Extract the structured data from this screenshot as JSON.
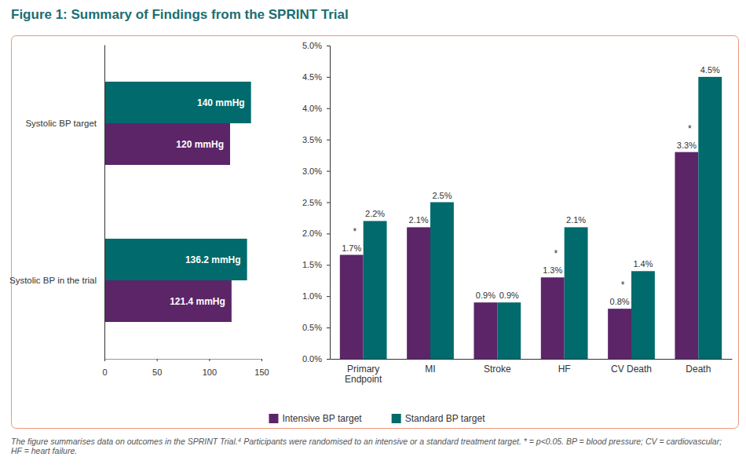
{
  "title": "Figure 1: Summary of Findings from the SPRINT Trial",
  "caption": "The figure summarises data on outcomes in the SPRINT Trial.⁴ Participants were randomised to an intensive or a standard treatment target. * = p<0.05. BP = blood pressure; CV = cardiovascular; HF = heart failure.",
  "chart_data": [
    {
      "type": "bar",
      "orientation": "horizontal",
      "categories": [
        "Systolic BP target",
        "Systolic BP in the trial"
      ],
      "series": [
        {
          "color": "#5c2568",
          "values": [
            120,
            121.4
          ],
          "value_labels": [
            "120 mmHg",
            "121.4 mmHg"
          ]
        },
        {
          "color": "#006a6c",
          "values": [
            140,
            136.2
          ],
          "value_labels": [
            "140 mmHg",
            "136.2 mmHg"
          ]
        }
      ],
      "xlim": [
        0,
        150
      ],
      "xticks": [
        0,
        50,
        100,
        150
      ],
      "data_labels": true,
      "grid": false
    },
    {
      "type": "bar",
      "categories": [
        "Primary Endpoint",
        "MI",
        "Stroke",
        "HF",
        "CV Death",
        "Death"
      ],
      "series": [
        {
          "name": "Intensive BP target",
          "color": "#5c2568",
          "values": [
            1.66,
            2.1,
            0.9,
            1.3,
            0.8,
            3.3
          ],
          "value_labels": [
            "1.7%",
            "2.1%",
            "0.9%",
            "1.3%",
            "0.8%",
            "3.3%"
          ]
        },
        {
          "name": "Standard BP target",
          "color": "#006a6c",
          "values": [
            2.2,
            2.5,
            0.9,
            2.1,
            1.4,
            4.5
          ],
          "value_labels": [
            "2.2%",
            "2.5%",
            "0.9%",
            "2.1%",
            "1.4%",
            "4.5%"
          ]
        }
      ],
      "ylim": [
        0,
        5
      ],
      "yticks": [
        {
          "value": 0,
          "label": "0.0%"
        },
        {
          "value": 0.5,
          "label": "0.5%"
        },
        {
          "value": 1,
          "label": "1.0%"
        },
        {
          "value": 1.5,
          "label": "1.5%"
        },
        {
          "value": 2,
          "label": "2.0%"
        },
        {
          "value": 2.5,
          "label": "2.5%"
        },
        {
          "value": 3,
          "label": "3.0%"
        },
        {
          "value": 3.5,
          "label": "3.5%"
        },
        {
          "value": 4,
          "label": "4.0%"
        },
        {
          "value": 4.5,
          "label": "4.5%"
        },
        {
          "value": 5,
          "label": "5.0%"
        }
      ],
      "data_labels": true,
      "grid": false,
      "legend": "bottom",
      "annotations": [
        {
          "text": "*",
          "category": "Primary Endpoint",
          "series": "Intensive BP target"
        },
        {
          "text": "*",
          "category": "HF",
          "series": "Intensive BP target"
        },
        {
          "text": "*",
          "category": "CV Death",
          "series": "Intensive BP target"
        },
        {
          "text": "*",
          "category": "Death",
          "series": "Intensive BP target"
        }
      ]
    }
  ]
}
